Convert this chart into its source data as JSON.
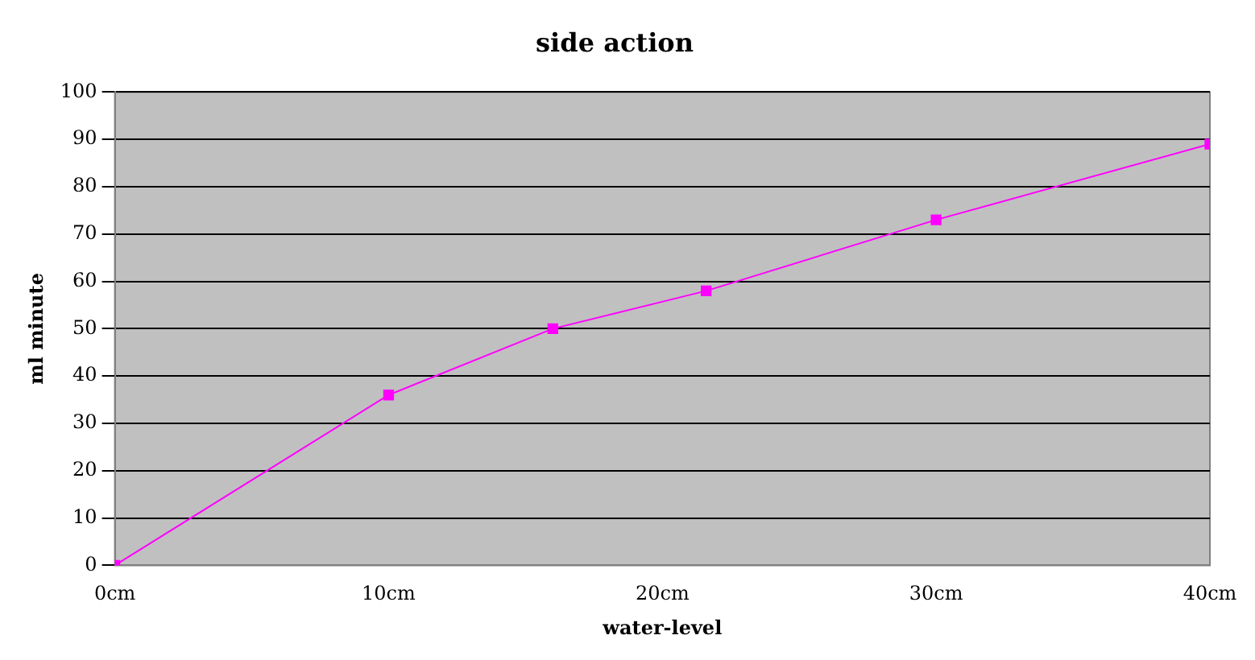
{
  "chart_data": {
    "type": "line",
    "title": "side action",
    "xlabel": "water-level",
    "ylabel": "ml minute",
    "x": [
      0,
      10,
      16,
      21.6,
      30,
      40
    ],
    "series": [
      {
        "color": "#ff00ff",
        "values": [
          0,
          36,
          50,
          58,
          73,
          89
        ]
      }
    ],
    "xlim": [
      0,
      40
    ],
    "xticks": [
      {
        "value": 0,
        "label": "0cm"
      },
      {
        "value": 10,
        "label": "10cm"
      },
      {
        "value": 20,
        "label": "20cm"
      },
      {
        "value": 30,
        "label": "30cm"
      },
      {
        "value": 40,
        "label": "40cm"
      }
    ],
    "ylim": [
      0,
      100
    ],
    "yticks": [
      0,
      10,
      20,
      30,
      40,
      50,
      60,
      70,
      80,
      90,
      100
    ],
    "grid": "y",
    "legend": false,
    "marker": "square",
    "line_style": "solid"
  }
}
